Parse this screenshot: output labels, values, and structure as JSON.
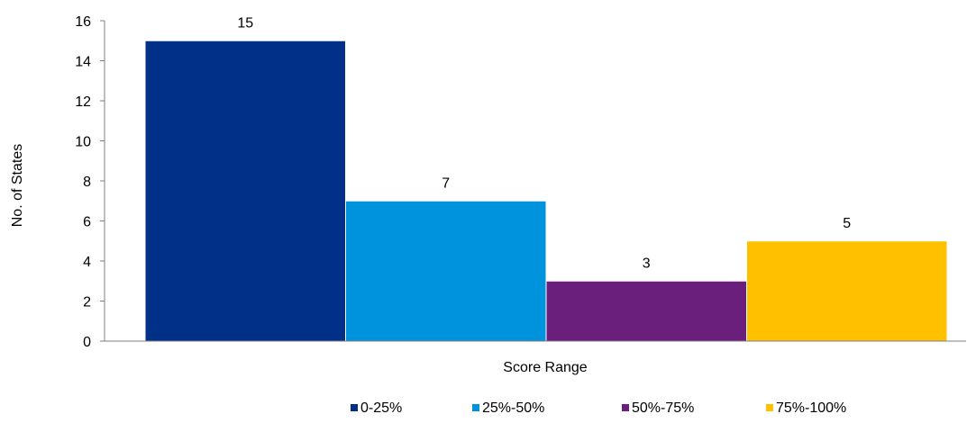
{
  "chart_data": {
    "type": "bar",
    "title": "",
    "xlabel": "Score Range",
    "ylabel": "No. of States",
    "ylim": [
      0,
      16
    ],
    "ytick_step": 2,
    "grid": false,
    "legend_position": "bottom",
    "series": [
      {
        "name": "0-25%",
        "value": 15,
        "color": "#003087"
      },
      {
        "name": "25%-50%",
        "value": 7,
        "color": "#0093DD"
      },
      {
        "name": "50%-75%",
        "value": 3,
        "color": "#6B1F7C"
      },
      {
        "name": "75%-100%",
        "value": 5,
        "color": "#FFC000"
      }
    ]
  }
}
